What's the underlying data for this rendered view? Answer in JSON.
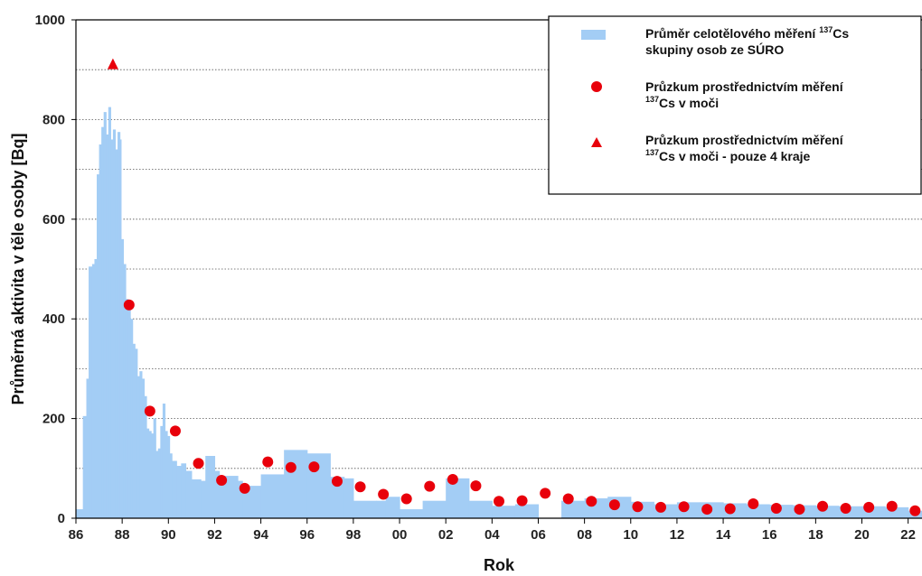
{
  "chart_data": {
    "type": "bar",
    "title": "",
    "xlabel": "Rok",
    "ylabel": "Průměrná aktivita v těle osoby  [Bq]",
    "xlim": [
      1986,
      2022.6
    ],
    "ylim": [
      0,
      1000
    ],
    "y_ticks": [
      "0",
      "200",
      "400",
      "600",
      "800",
      "1000"
    ],
    "x_ticks": [
      "86",
      "88",
      "90",
      "92",
      "94",
      "96",
      "98",
      "00",
      "02",
      "04",
      "06",
      "08",
      "10",
      "12",
      "14",
      "16",
      "18",
      "20",
      "22"
    ],
    "grid": "horizontal dotted",
    "legend_position": "top-right",
    "colors": {
      "bars": "#a3cdf5",
      "points": "#e8000b",
      "frame": "#000000"
    },
    "series": [
      {
        "name_parts": {
          "pre": "Průměr celotělového měření ",
          "sup": "137",
          "post": "Cs",
          "line2": "skupiny osob ze SÚRO"
        },
        "marker": "bar",
        "step": [
          [
            1986.0,
            18
          ],
          [
            1986.3,
            205
          ],
          [
            1986.45,
            280
          ],
          [
            1986.55,
            505
          ],
          [
            1986.7,
            510
          ],
          [
            1986.8,
            520
          ],
          [
            1986.9,
            690
          ],
          [
            1987.0,
            750
          ],
          [
            1987.1,
            785
          ],
          [
            1987.2,
            815
          ],
          [
            1987.3,
            770
          ],
          [
            1987.4,
            825
          ],
          [
            1987.5,
            760
          ],
          [
            1987.6,
            780
          ],
          [
            1987.7,
            740
          ],
          [
            1987.8,
            775
          ],
          [
            1987.9,
            760
          ],
          [
            1987.95,
            560
          ],
          [
            1988.05,
            510
          ],
          [
            1988.15,
            440
          ],
          [
            1988.25,
            430
          ],
          [
            1988.35,
            400
          ],
          [
            1988.45,
            350
          ],
          [
            1988.55,
            340
          ],
          [
            1988.65,
            285
          ],
          [
            1988.75,
            295
          ],
          [
            1988.85,
            280
          ],
          [
            1988.95,
            245
          ],
          [
            1989.05,
            180
          ],
          [
            1989.15,
            175
          ],
          [
            1989.25,
            170
          ],
          [
            1989.35,
            200
          ],
          [
            1989.45,
            135
          ],
          [
            1989.55,
            140
          ],
          [
            1989.65,
            185
          ],
          [
            1989.75,
            230
          ],
          [
            1989.85,
            175
          ],
          [
            1989.95,
            165
          ],
          [
            1990.05,
            130
          ],
          [
            1990.15,
            115
          ],
          [
            1990.35,
            105
          ],
          [
            1990.55,
            110
          ],
          [
            1990.75,
            95
          ],
          [
            1991.0,
            78
          ],
          [
            1991.4,
            75
          ],
          [
            1991.6,
            125
          ],
          [
            1992.0,
            95
          ],
          [
            1992.2,
            85
          ],
          [
            1993.0,
            75
          ],
          [
            1993.2,
            65
          ],
          [
            1994.0,
            88
          ],
          [
            1995.0,
            137
          ],
          [
            1996.0,
            130
          ],
          [
            1997.0,
            83
          ],
          [
            1997.6,
            80
          ],
          [
            1998.0,
            35
          ],
          [
            1999.0,
            35
          ],
          [
            1999.4,
            43
          ],
          [
            2000.0,
            18
          ],
          [
            2001.0,
            35
          ],
          [
            2002.0,
            80
          ],
          [
            2003.0,
            35
          ],
          [
            2004.0,
            25
          ],
          [
            2005.0,
            28
          ],
          [
            2006.0,
            0
          ],
          [
            2007.0,
            35
          ],
          [
            2008.0,
            40
          ],
          [
            2009.0,
            43
          ],
          [
            2010.0,
            33
          ],
          [
            2011.0,
            28
          ],
          [
            2012.0,
            32
          ],
          [
            2013.0,
            32
          ],
          [
            2014.0,
            30
          ],
          [
            2015.0,
            28
          ],
          [
            2016.0,
            27
          ],
          [
            2017.0,
            26
          ],
          [
            2018.0,
            25
          ],
          [
            2019.0,
            24
          ],
          [
            2020.0,
            24
          ],
          [
            2021.0,
            22
          ],
          [
            2022.0,
            15
          ],
          [
            2022.6,
            15
          ]
        ]
      },
      {
        "name_parts": {
          "pre": "Průzkum prostřednictvím měření",
          "sup": "137",
          "post": "Cs v moči",
          "line2": ""
        },
        "marker": "circle",
        "x": [
          1988.3,
          1989.2,
          1990.3,
          1991.3,
          1992.3,
          1993.3,
          1994.3,
          1995.3,
          1996.3,
          1997.3,
          1998.3,
          1999.3,
          2000.3,
          2001.3,
          2002.3,
          2003.3,
          2004.3,
          2005.3,
          2006.3,
          2007.3,
          2008.3,
          2009.3,
          2010.3,
          2011.3,
          2012.3,
          2013.3,
          2014.3,
          2015.3,
          2016.3,
          2017.3,
          2018.3,
          2019.3,
          2020.3,
          2021.3,
          2022.3
        ],
        "y": [
          428,
          215,
          175,
          110,
          76,
          60,
          113,
          102,
          103,
          74,
          63,
          48,
          39,
          64,
          78,
          65,
          34,
          35,
          50,
          39,
          34,
          27,
          23,
          22,
          23,
          18,
          19,
          29,
          20,
          18,
          24,
          20,
          22,
          24,
          15
        ]
      },
      {
        "name_parts": {
          "pre": "Průzkum prostřednictvím měření",
          "sup": "137",
          "post": "Cs v moči - pouze 4 kraje",
          "line2": ""
        },
        "marker": "triangle",
        "x": [
          1987.6
        ],
        "y": [
          910
        ]
      }
    ]
  }
}
